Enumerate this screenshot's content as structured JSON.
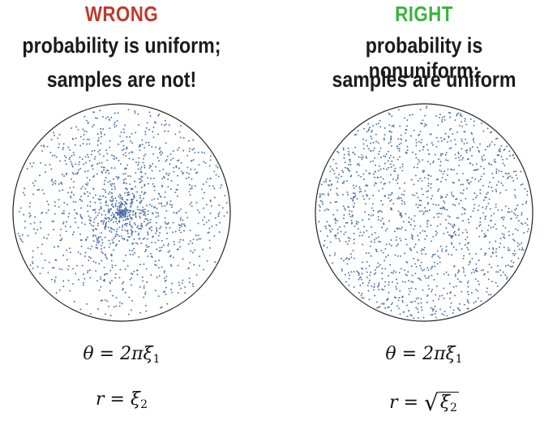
{
  "wrong_panel": {
    "verdict": "WRONG",
    "line1": "probability is uniform;",
    "line2": "samples are not!",
    "formula_theta": {
      "lhs": "θ",
      "eq": "=",
      "rhs": "2πξ",
      "sub": "1"
    },
    "formula_r": {
      "lhs": "r",
      "eq": "=",
      "rhs": "ξ",
      "sub": "2"
    }
  },
  "right_panel": {
    "verdict": "RIGHT",
    "line1": "probability is nonuniform;",
    "line2": "samples are uniform",
    "formula_theta": {
      "lhs": "θ",
      "eq": "=",
      "rhs": "2πξ",
      "sub": "1"
    },
    "formula_r": {
      "lhs": "r",
      "eq": "=",
      "rhs": "ξ",
      "sub": "2",
      "sqrt": true
    }
  },
  "colors": {
    "wrong": "#c0392b",
    "right": "#3db13d",
    "dot": "#4a6fa8",
    "disk_outline": "#222222"
  },
  "samples": {
    "wrong_rule": "r = xi2",
    "right_rule": "r = sqrt(xi2)",
    "count": 1400
  }
}
